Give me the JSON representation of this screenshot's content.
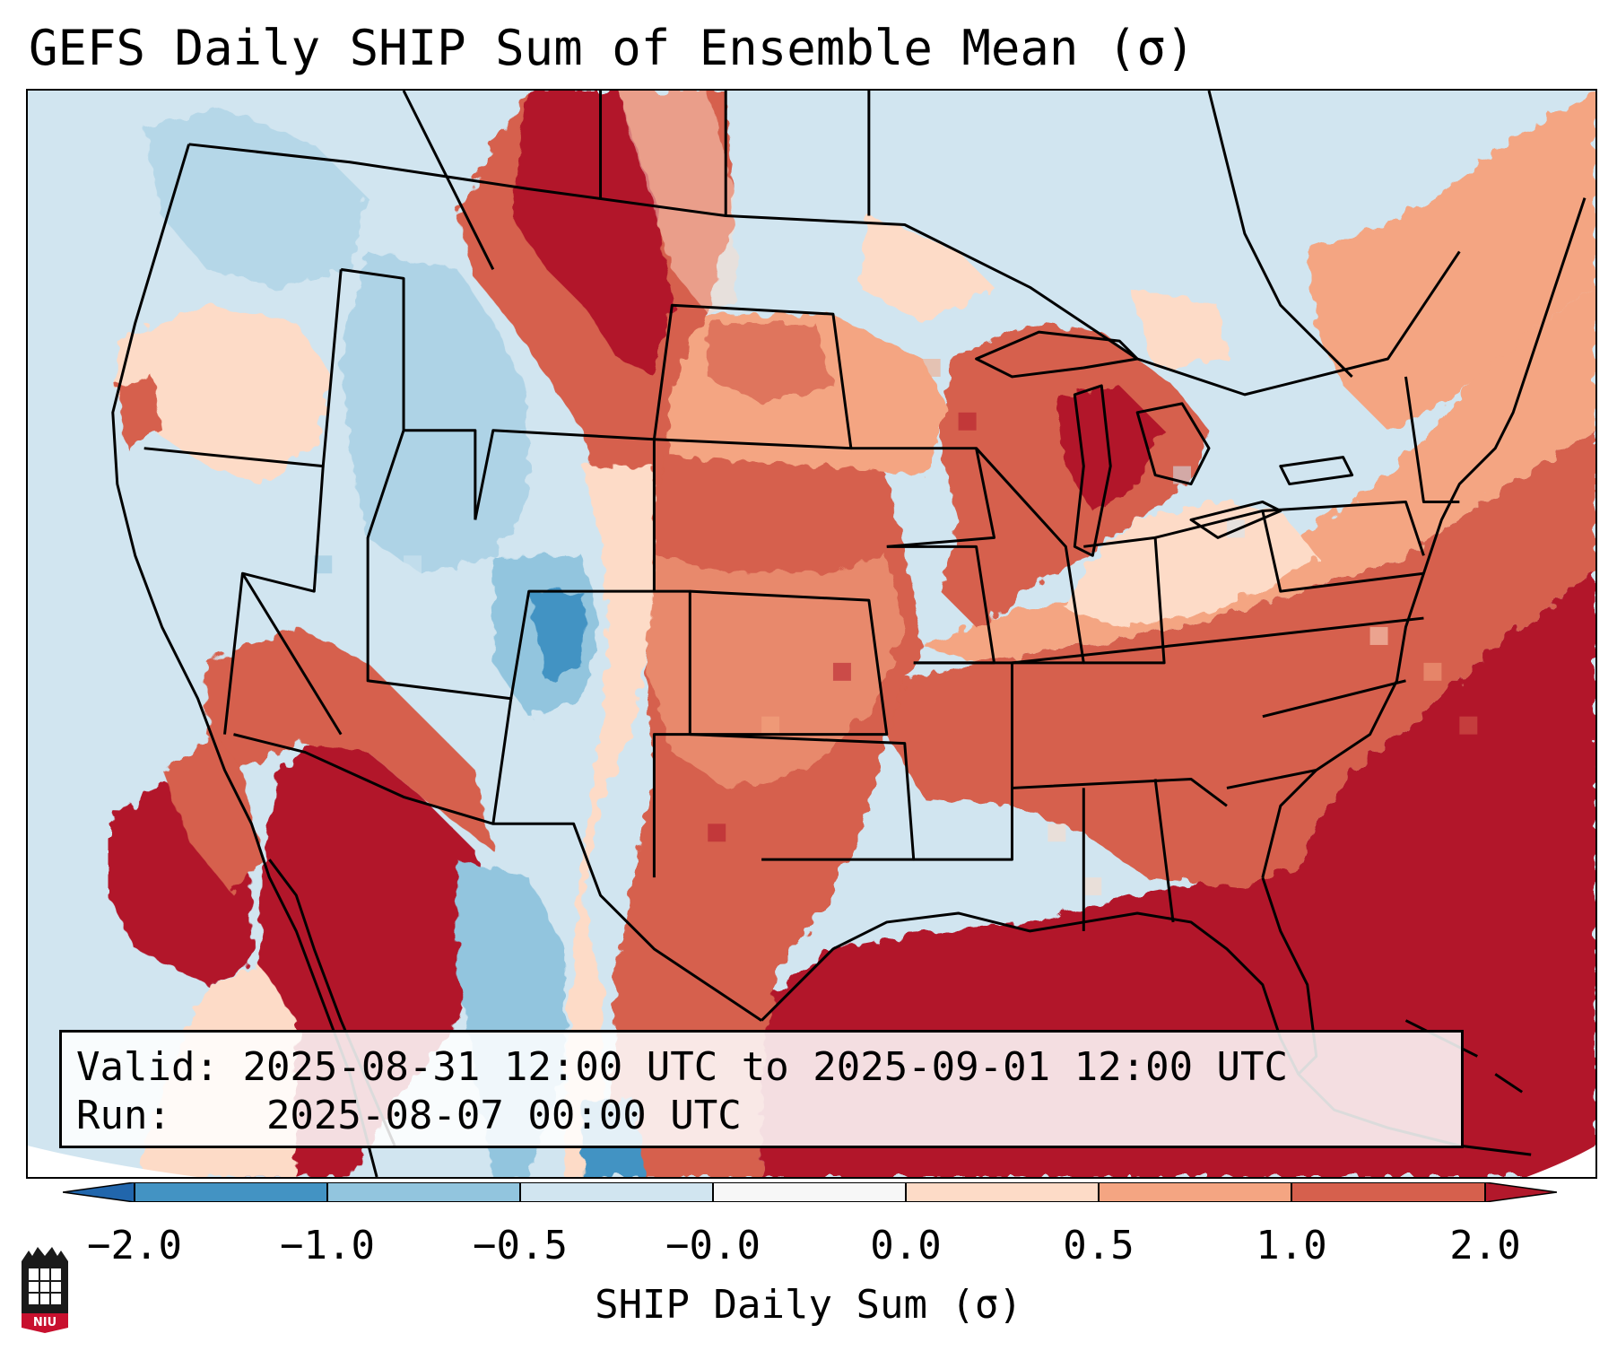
{
  "title": "GEFS Daily SHIP Sum of Ensemble Mean (σ)",
  "info": {
    "valid_label": "Valid:",
    "valid_value": "2025-08-31 12:00 UTC to 2025-09-01 12:00 UTC",
    "run_label": "Run:",
    "run_value": "2025-08-07 00:00 UTC"
  },
  "colorbar": {
    "label": "SHIP Daily Sum (σ)",
    "ticks": [
      "−2.0",
      "−1.0",
      "−0.5",
      "−0.0",
      "0.0",
      "0.5",
      "1.0",
      "2.0"
    ],
    "colors": [
      "#4393c3",
      "#92c5de",
      "#d1e5f0",
      "#f7f7f7",
      "#fddbc7",
      "#f4a582",
      "#d6604d",
      "#b2182b"
    ],
    "extend_low_color": "#2166ac",
    "extend_high_color": "#b2182b"
  },
  "logo": {
    "text": "NIU",
    "name": "niu-logo"
  }
}
